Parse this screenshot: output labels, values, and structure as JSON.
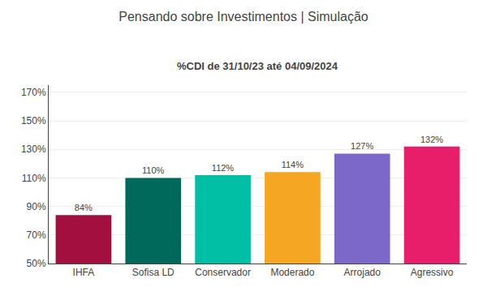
{
  "chart_data": {
    "type": "bar",
    "title": "Pensando sobre Investimentos | Simulação",
    "subtitle": "%CDI de 31/10/23 até 04/09/2024",
    "categories": [
      "IHFA",
      "Sofisa LD",
      "Conservador",
      "Moderado",
      "Arrojado",
      "Agressivo"
    ],
    "values": [
      84,
      110,
      112,
      114,
      127,
      132
    ],
    "value_labels": [
      "84%",
      "110%",
      "112%",
      "114%",
      "127%",
      "132%"
    ],
    "colors": [
      "#A31040",
      "#00695C",
      "#00BFA5",
      "#F5A623",
      "#7B68C8",
      "#E91E6B"
    ],
    "ylim": [
      50,
      175
    ],
    "yticks": [
      {
        "value": 50,
        "label": "50%"
      },
      {
        "value": 70,
        "label": "70%"
      },
      {
        "value": 90,
        "label": "90%"
      },
      {
        "value": 110,
        "label": "110%"
      },
      {
        "value": 130,
        "label": "130%"
      },
      {
        "value": 150,
        "label": "150%"
      },
      {
        "value": 170,
        "label": "170%"
      }
    ],
    "grid": true,
    "data_labels": true
  }
}
